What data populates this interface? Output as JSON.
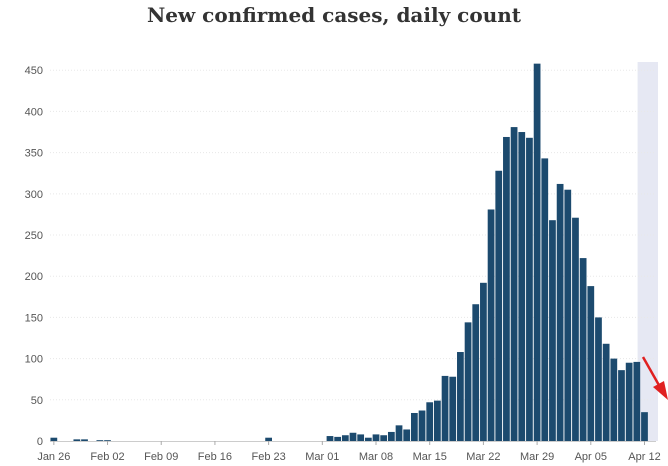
{
  "chart_data": {
    "type": "bar",
    "title": "New confirmed cases, daily count",
    "xlabel": "",
    "ylabel": "",
    "ylim": [
      0,
      460
    ],
    "y_ticks": [
      0,
      50,
      100,
      150,
      200,
      250,
      300,
      350,
      400,
      450
    ],
    "x_tick_labels": [
      "Jan 26",
      "Feb 02",
      "Feb 09",
      "Feb 16",
      "Feb 23",
      "Mar 01",
      "Mar 08",
      "Mar 15",
      "Mar 22",
      "Mar 29",
      "Apr 05",
      "Apr 12"
    ],
    "grid": "horizontal dotted",
    "bar_color": "#1c4a6e",
    "highlight_band_color": "#e6e8f3",
    "highlight_band": "last days up to Apr 12",
    "annotation": "red arrow pointing down at right edge",
    "categories": [
      "Jan 26",
      "Jan 27",
      "Jan 28",
      "Jan 29",
      "Jan 30",
      "Jan 31",
      "Feb 01",
      "Feb 02",
      "Feb 03",
      "Feb 04",
      "Feb 05",
      "Feb 06",
      "Feb 07",
      "Feb 08",
      "Feb 09",
      "Feb 10",
      "Feb 11",
      "Feb 12",
      "Feb 13",
      "Feb 14",
      "Feb 15",
      "Feb 16",
      "Feb 17",
      "Feb 18",
      "Feb 19",
      "Feb 20",
      "Feb 21",
      "Feb 22",
      "Feb 23",
      "Feb 24",
      "Feb 25",
      "Feb 26",
      "Feb 27",
      "Feb 28",
      "Feb 29",
      "Mar 01",
      "Mar 02",
      "Mar 03",
      "Mar 04",
      "Mar 05",
      "Mar 06",
      "Mar 07",
      "Mar 08",
      "Mar 09",
      "Mar 10",
      "Mar 11",
      "Mar 12",
      "Mar 13",
      "Mar 14",
      "Mar 15",
      "Mar 16",
      "Mar 17",
      "Mar 18",
      "Mar 19",
      "Mar 20",
      "Mar 21",
      "Mar 22",
      "Mar 23",
      "Mar 24",
      "Mar 25",
      "Mar 26",
      "Mar 27",
      "Mar 28",
      "Mar 29",
      "Mar 30",
      "Mar 31",
      "Apr 01",
      "Apr 02",
      "Apr 03",
      "Apr 04",
      "Apr 05",
      "Apr 06",
      "Apr 07",
      "Apr 08",
      "Apr 09",
      "Apr 10",
      "Apr 11",
      "Apr 12",
      "Apr 13"
    ],
    "values": [
      4,
      0,
      0,
      2,
      2,
      0,
      1,
      1,
      0,
      0,
      0,
      0,
      0,
      0,
      0,
      0,
      0,
      0,
      0,
      0,
      0,
      0,
      0,
      0,
      0,
      0,
      0,
      0,
      4,
      0,
      0,
      0,
      0,
      0,
      0,
      0,
      6,
      5,
      7,
      10,
      8,
      4,
      8,
      7,
      11,
      19,
      14,
      34,
      37,
      47,
      49,
      79,
      78,
      108,
      144,
      166,
      192,
      281,
      328,
      369,
      381,
      375,
      368,
      458,
      343,
      268,
      312,
      305,
      271,
      222,
      188,
      150,
      118,
      100,
      86,
      95,
      96,
      35,
      0
    ]
  }
}
